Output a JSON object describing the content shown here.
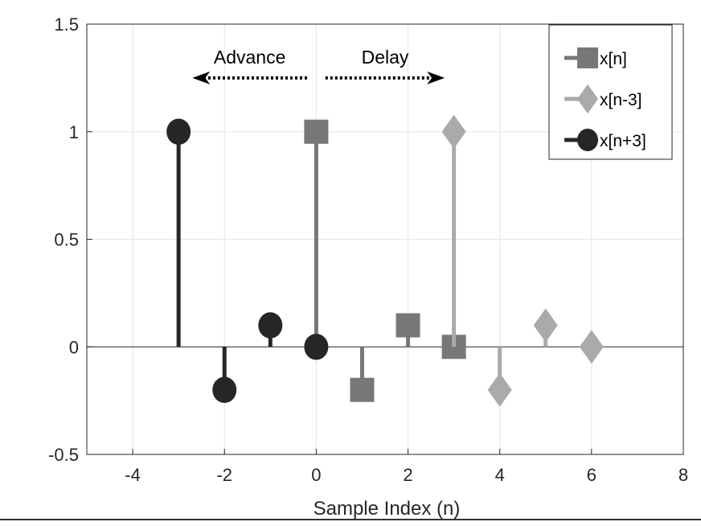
{
  "chart_data": {
    "type": "stem",
    "xlabel": "Sample Index (n)",
    "ylabel": "",
    "xlim": [
      -5,
      8
    ],
    "ylim": [
      -0.5,
      1.5
    ],
    "xticks": [
      -4,
      -2,
      0,
      2,
      4,
      6,
      8
    ],
    "yticks": [
      -0.5,
      0,
      0.5,
      1,
      1.5
    ],
    "xtick_labels": [
      "-4",
      "-2",
      "0",
      "2",
      "4",
      "6",
      "8"
    ],
    "ytick_labels": [
      "-0.5",
      "0",
      "0.5",
      "1",
      "1.5"
    ],
    "grid": true,
    "legend_position": "top-right",
    "series": [
      {
        "name": "x[n]",
        "marker": "square",
        "color": "#777777",
        "x": [
          0,
          1,
          2,
          3
        ],
        "y": [
          1,
          -0.2,
          0.1,
          0
        ]
      },
      {
        "name": "x[n-3]",
        "marker": "diamond",
        "color": "#aaaaaa",
        "x": [
          3,
          4,
          5,
          6
        ],
        "y": [
          1,
          -0.2,
          0.1,
          0
        ]
      },
      {
        "name": "x[n+3]",
        "marker": "circle",
        "color": "#262626",
        "x": [
          -3,
          -2,
          -1,
          0
        ],
        "y": [
          1,
          -0.2,
          0.1,
          0
        ]
      }
    ],
    "annotations": [
      {
        "text": "Advance",
        "arrow": "left",
        "x_from": -0.2,
        "x_to": -2.7,
        "y": 1.25
      },
      {
        "text": "Delay",
        "arrow": "right",
        "x_from": 0.2,
        "x_to": 2.8,
        "y": 1.25
      }
    ]
  }
}
